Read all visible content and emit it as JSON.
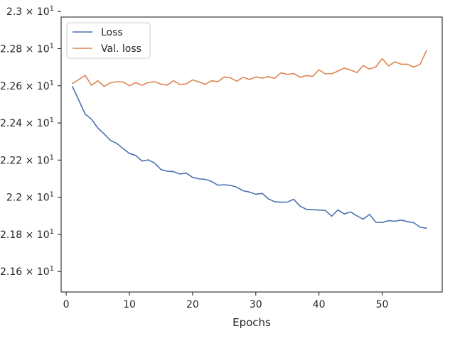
{
  "chart_data": {
    "type": "line",
    "title": "",
    "xlabel": "Epochs",
    "ylabel": "",
    "xlim": [
      -0.8,
      59.5
    ],
    "ylim": [
      21.49,
      22.97
    ],
    "x_ticks": [
      0,
      10,
      20,
      30,
      40,
      50
    ],
    "x_tick_labels": [
      "0",
      "10",
      "20",
      "30",
      "40",
      "50"
    ],
    "y_ticks": [
      21.6,
      21.8,
      22.0,
      22.2,
      22.4,
      22.6,
      22.8,
      23.0
    ],
    "y_tick_mantissas": [
      "2.16",
      "2.18",
      "2.2",
      "2.22",
      "2.24",
      "2.26",
      "2.28",
      "2.3"
    ],
    "y_tick_base": "× 10",
    "y_tick_exponent": "1",
    "grid": false,
    "legend_position": "upper-left",
    "x": [
      1,
      2,
      3,
      4,
      5,
      6,
      7,
      8,
      9,
      10,
      11,
      12,
      13,
      14,
      15,
      16,
      17,
      18,
      19,
      20,
      21,
      22,
      23,
      24,
      25,
      26,
      27,
      28,
      29,
      30,
      31,
      32,
      33,
      34,
      35,
      36,
      37,
      38,
      39,
      40,
      41,
      42,
      43,
      44,
      45,
      46,
      47,
      48,
      49,
      50,
      51,
      52,
      53,
      54,
      55,
      56,
      57
    ],
    "series": [
      {
        "name": "Loss",
        "color": "#4c72b0",
        "values": [
          22.595,
          22.522,
          22.447,
          22.42,
          22.373,
          22.341,
          22.306,
          22.29,
          22.262,
          22.236,
          22.225,
          22.195,
          22.201,
          22.184,
          22.149,
          22.14,
          22.138,
          22.125,
          22.13,
          22.107,
          22.099,
          22.096,
          22.085,
          22.065,
          22.067,
          22.064,
          22.054,
          22.035,
          22.028,
          22.016,
          22.021,
          21.991,
          21.976,
          21.973,
          21.974,
          21.989,
          21.952,
          21.935,
          21.933,
          21.931,
          21.929,
          21.898,
          21.932,
          21.91,
          21.921,
          21.9,
          21.882,
          21.908,
          21.865,
          21.864,
          21.874,
          21.871,
          21.877,
          21.869,
          21.863,
          21.839,
          21.833
        ]
      },
      {
        "name": "Val. loss",
        "color": "#dd8452",
        "values": [
          22.612,
          22.634,
          22.656,
          22.603,
          22.627,
          22.597,
          22.616,
          22.622,
          22.621,
          22.6,
          22.617,
          22.603,
          22.618,
          22.622,
          22.609,
          22.604,
          22.627,
          22.607,
          22.61,
          22.632,
          22.621,
          22.608,
          22.627,
          22.622,
          22.647,
          22.643,
          22.624,
          22.646,
          22.634,
          22.648,
          22.641,
          22.649,
          22.64,
          22.67,
          22.661,
          22.666,
          22.646,
          22.655,
          22.651,
          22.686,
          22.664,
          22.665,
          22.679,
          22.695,
          22.685,
          22.671,
          22.709,
          22.69,
          22.702,
          22.746,
          22.707,
          22.729,
          22.716,
          22.716,
          22.701,
          22.715,
          22.789
        ]
      }
    ]
  }
}
